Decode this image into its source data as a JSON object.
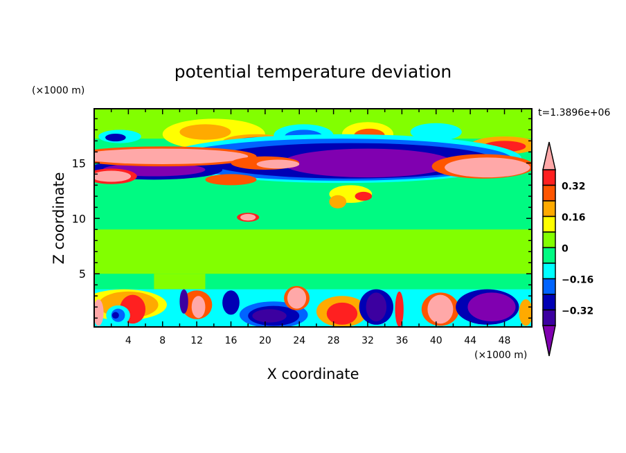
{
  "chart_data": {
    "type": "heatmap",
    "title": "potential temperature deviation",
    "xlabel": "X coordinate",
    "ylabel": "Z coordinate",
    "x_unit_label": "(×1000 m)",
    "y_unit_label": "(×1000 m)",
    "time_label": "t=1.3896e+06",
    "xlim": [
      0,
      51.2
    ],
    "ylim": [
      0.2,
      19.9
    ],
    "xticks": [
      4,
      8,
      12,
      16,
      20,
      24,
      28,
      32,
      36,
      40,
      44,
      48
    ],
    "yticks": [
      5,
      10,
      15
    ],
    "levels": [
      -0.4,
      -0.32,
      -0.24,
      -0.16,
      -0.08,
      0,
      0.08,
      0.16,
      0.24,
      0.32,
      0.4
    ],
    "colors": [
      "#8000b0",
      "#3c00a0",
      "#0000b4",
      "#0064ff",
      "#00ffff",
      "#00fa82",
      "#82ff00",
      "#ffff00",
      "#ffaa00",
      "#ff5500",
      "#ff2020",
      "#ffa8a8"
    ],
    "colorbar_labels": [
      {
        "value": 0.32,
        "text": "0.32"
      },
      {
        "value": 0.16,
        "text": "0.16"
      },
      {
        "value": 0,
        "text": "0"
      },
      {
        "value": -0.16,
        "text": "-0.16"
      },
      {
        "value": -0.32,
        "text": "-0.32"
      }
    ],
    "background_level": 5,
    "features": [
      {
        "x": [
          0,
          51.2
        ],
        "z": [
          17.2,
          19.9
        ],
        "level": 6
      },
      {
        "x": [
          0,
          51.2
        ],
        "z": [
          5,
          9
        ],
        "level": 6
      },
      {
        "x": [
          7,
          13
        ],
        "z": [
          3.6,
          5
        ],
        "level": 6
      },
      {
        "x": [
          0,
          51.2
        ],
        "z": [
          0.2,
          3.6
        ],
        "level": 4
      },
      {
        "ell": [
          14,
          17.6,
          6,
          1.4
        ],
        "level": 7
      },
      {
        "ell": [
          13,
          17.8,
          3,
          0.7
        ],
        "level": 8
      },
      {
        "ell": [
          19,
          16.9,
          4,
          0.7
        ],
        "level": 8
      },
      {
        "ell": [
          19,
          16.9,
          2.5,
          0.45
        ],
        "level": 10
      },
      {
        "ell": [
          24.5,
          17.5,
          3.5,
          1.0
        ],
        "level": 4
      },
      {
        "ell": [
          24.5,
          17.4,
          2.2,
          0.6
        ],
        "level": 3
      },
      {
        "ell": [
          32,
          17.6,
          3,
          1.1
        ],
        "level": 7
      },
      {
        "ell": [
          32.2,
          17.5,
          1.8,
          0.6
        ],
        "level": 9
      },
      {
        "ell": [
          40,
          17.8,
          3,
          0.8
        ],
        "level": 4
      },
      {
        "ell": [
          3,
          17.4,
          2.5,
          0.6
        ],
        "level": 4
      },
      {
        "ell": [
          2.5,
          17.3,
          1.2,
          0.35
        ],
        "level": 2
      },
      {
        "ell": [
          48,
          16.6,
          4,
          0.8
        ],
        "level": 8
      },
      {
        "ell": [
          48,
          16.5,
          2.5,
          0.5
        ],
        "level": 10
      },
      {
        "ell": [
          29,
          15.4,
          21,
          2.2
        ],
        "level": 4
      },
      {
        "ell": [
          29,
          15.3,
          20,
          1.9
        ],
        "level": 3
      },
      {
        "ell": [
          30,
          15.2,
          17,
          1.6
        ],
        "level": 2
      },
      {
        "ell": [
          32,
          15.0,
          10,
          1.3
        ],
        "level": 0
      },
      {
        "ell": [
          7,
          14.4,
          8,
          0.9
        ],
        "level": 2
      },
      {
        "ell": [
          7,
          14.4,
          6,
          0.6
        ],
        "level": 0
      },
      {
        "ell": [
          8,
          15.6,
          11,
          0.9
        ],
        "level": 9
      },
      {
        "ell": [
          8,
          15.6,
          10,
          0.7
        ],
        "level": 11
      },
      {
        "ell": [
          20,
          15.0,
          4,
          0.6
        ],
        "level": 9
      },
      {
        "ell": [
          21.5,
          14.9,
          2.5,
          0.4
        ],
        "level": 11
      },
      {
        "ell": [
          45.5,
          14.7,
          6,
          1.1
        ],
        "level": 9
      },
      {
        "ell": [
          46,
          14.6,
          5,
          0.9
        ],
        "level": 11
      },
      {
        "ell": [
          2,
          13.8,
          3,
          0.7
        ],
        "level": 10
      },
      {
        "ell": [
          2,
          13.8,
          2.3,
          0.5
        ],
        "level": 11
      },
      {
        "ell": [
          16,
          13.5,
          3,
          0.5
        ],
        "level": 9
      },
      {
        "ell": [
          30,
          12.2,
          2.5,
          0.8
        ],
        "level": 7
      },
      {
        "ell": [
          31.5,
          12,
          1,
          0.4
        ],
        "level": 10
      },
      {
        "ell": [
          28.5,
          11.5,
          1,
          0.6
        ],
        "level": 8
      },
      {
        "ell": [
          18,
          10.1,
          1.3,
          0.4
        ],
        "level": 10
      },
      {
        "ell": [
          18,
          10.1,
          0.9,
          0.3
        ],
        "level": 11
      },
      {
        "ell": [
          3.5,
          2.2,
          5,
          1.4
        ],
        "level": 7
      },
      {
        "ell": [
          4,
          2.2,
          3.5,
          1.2
        ],
        "level": 8
      },
      {
        "ell": [
          4.5,
          1.8,
          1.5,
          1.3
        ],
        "level": 10
      },
      {
        "ell": [
          2.8,
          1.25,
          1.4,
          0.9
        ],
        "level": 4
      },
      {
        "ell": [
          2.8,
          1.25,
          0.8,
          0.6
        ],
        "level": 3
      },
      {
        "ell": [
          2.5,
          1.25,
          0.4,
          0.3
        ],
        "level": 2
      },
      {
        "ell": [
          0.5,
          1.5,
          0.6,
          1.2
        ],
        "level": 11
      },
      {
        "ell": [
          12,
          2.2,
          1.8,
          1.3
        ],
        "level": 9
      },
      {
        "ell": [
          12.2,
          2,
          0.8,
          1
        ],
        "level": 11
      },
      {
        "ell": [
          10.5,
          2.5,
          0.5,
          1.1
        ],
        "level": 1
      },
      {
        "ell": [
          16,
          2.4,
          1,
          1.1
        ],
        "level": 2
      },
      {
        "ell": [
          21,
          1.3,
          4,
          1.2
        ],
        "level": 3
      },
      {
        "ell": [
          21,
          1.2,
          3,
          0.9
        ],
        "level": 2
      },
      {
        "ell": [
          20.5,
          1.2,
          2,
          0.6
        ],
        "level": 1
      },
      {
        "ell": [
          23.7,
          2.8,
          1.5,
          1.1
        ],
        "level": 9
      },
      {
        "ell": [
          23.7,
          2.8,
          1.1,
          0.95
        ],
        "level": 11
      },
      {
        "ell": [
          29,
          1.6,
          3,
          1.4
        ],
        "level": 8
      },
      {
        "ell": [
          29,
          1.4,
          1.8,
          1
        ],
        "level": 10
      },
      {
        "ell": [
          33,
          2,
          2,
          1.6
        ],
        "level": 2
      },
      {
        "ell": [
          33,
          2,
          1.2,
          1.3
        ],
        "level": 1
      },
      {
        "ell": [
          35.7,
          1.8,
          0.5,
          1.6
        ],
        "level": 10
      },
      {
        "ell": [
          40.5,
          1.8,
          2.2,
          1.5
        ],
        "level": 9
      },
      {
        "ell": [
          40.5,
          1.8,
          1.5,
          1.3
        ],
        "level": 11
      },
      {
        "ell": [
          46,
          2,
          3.7,
          1.6
        ],
        "level": 2
      },
      {
        "ell": [
          46.5,
          2,
          2.8,
          1.3
        ],
        "level": 0
      },
      {
        "ell": [
          50.5,
          1.5,
          0.8,
          1.2
        ],
        "level": 8
      }
    ]
  }
}
